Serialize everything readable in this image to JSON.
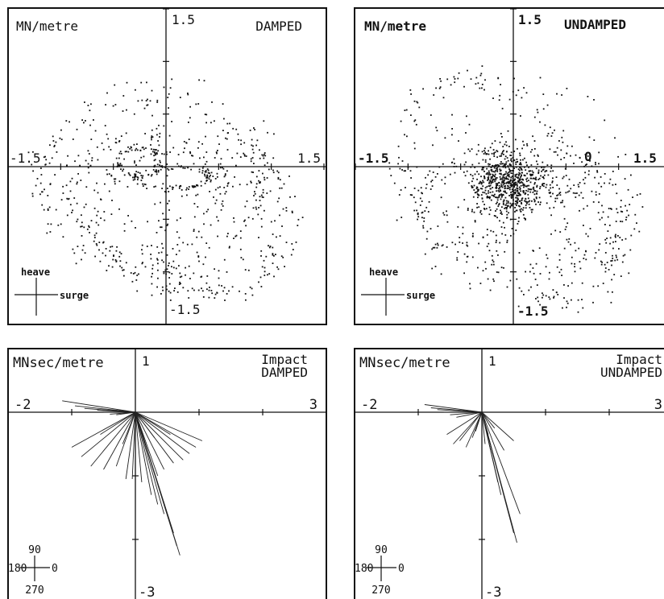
{
  "chart_data": [
    {
      "type": "scatter",
      "title": "DAMPED",
      "unit_label": "MN/metre",
      "axes_labels": {
        "ymax": "1.5",
        "xmin": "-1.5",
        "xmax": "1.5",
        "ymin": "-1.5"
      },
      "legend_cross": {
        "vertical": "heave",
        "horizontal": "surge"
      },
      "xlim": [
        -1.5,
        1.5
      ],
      "ylim": [
        -1.5,
        1.5
      ],
      "grid": false,
      "rings": [
        {
          "cx": -0.15,
          "cy": -0.15,
          "rx": 1.05,
          "ry": 0.8,
          "n": 150,
          "jitter": 0.05
        },
        {
          "cx": -0.2,
          "cy": -0.25,
          "rx": 0.7,
          "ry": 0.55,
          "n": 110,
          "jitter": 0.05
        },
        {
          "cx": 0.5,
          "cy": -0.6,
          "rx": 0.55,
          "ry": 0.55,
          "n": 110,
          "jitter": 0.07
        },
        {
          "cx": 0.3,
          "cy": -0.5,
          "rx": 0.95,
          "ry": 0.7,
          "n": 140,
          "jitter": 0.05
        },
        {
          "cx": -0.25,
          "cy": 0.05,
          "rx": 0.2,
          "ry": 0.14,
          "n": 80,
          "jitter": 0.02
        },
        {
          "cx": 0.05,
          "cy": -0.1,
          "rx": 0.35,
          "ry": 0.1,
          "n": 80,
          "jitter": 0.02
        }
      ],
      "scatter_density": 1100
    },
    {
      "type": "scatter",
      "title": "UNDAMPED",
      "unit_label": "MN/metre",
      "axes_labels": {
        "ymax": "1.5",
        "xmin": "-1.5",
        "xmax": "1.5",
        "ymin": "-1.5",
        "extra": "0"
      },
      "legend_cross": {
        "vertical": "heave",
        "horizontal": "surge"
      },
      "xlim": [
        -1.5,
        1.5
      ],
      "ylim": [
        -1.5,
        1.5
      ],
      "grid": false,
      "rings": [
        {
          "cx": -0.35,
          "cy": 0.1,
          "rx": 0.75,
          "ry": 0.75,
          "n": 130,
          "jitter": 0.06
        },
        {
          "cx": 0.05,
          "cy": -0.4,
          "rx": 0.95,
          "ry": 0.6,
          "n": 140,
          "jitter": 0.05
        },
        {
          "cx": 0.4,
          "cy": -0.75,
          "rx": 0.6,
          "ry": 0.55,
          "n": 110,
          "jitter": 0.07
        },
        {
          "cx": 0.8,
          "cy": -0.5,
          "rx": 0.35,
          "ry": 0.4,
          "n": 60,
          "jitter": 0.05
        }
      ],
      "cluster": {
        "cx": -0.05,
        "cy": -0.1,
        "sx": 0.18,
        "sy": 0.15,
        "n": 700
      },
      "scatter_density": 1000
    },
    {
      "type": "line",
      "title": "Impact DAMPED",
      "unit_label": "MNsec/metre",
      "axes_labels": {
        "ymax": "1",
        "xmin": "-2",
        "xmax": "3",
        "ymin": "-3"
      },
      "legend_cross": {
        "top": "90",
        "left": "180",
        "right": "0",
        "bottom": "270"
      },
      "xlim": [
        -2,
        3
      ],
      "ylim": [
        -3,
        1
      ],
      "origin_rays": [
        [
          -1.15,
          0.18
        ],
        [
          -0.95,
          0.1
        ],
        [
          -0.8,
          0.06
        ],
        [
          -0.6,
          0.03
        ],
        [
          -0.5,
          0.0
        ],
        [
          -0.4,
          -0.03
        ],
        [
          -0.3,
          -0.04
        ],
        [
          -1.0,
          -0.55
        ],
        [
          -0.85,
          -0.7
        ],
        [
          -0.7,
          -0.85
        ],
        [
          -0.5,
          -0.9
        ],
        [
          -0.3,
          -0.85
        ],
        [
          -0.15,
          -1.05
        ],
        [
          -0.05,
          -1.05
        ],
        [
          0.1,
          -1.1
        ],
        [
          0.25,
          -1.3
        ],
        [
          0.35,
          -1.45
        ],
        [
          0.45,
          -1.6
        ],
        [
          0.55,
          -1.75
        ],
        [
          0.6,
          -1.9
        ],
        [
          0.65,
          -2.1
        ],
        [
          0.7,
          -2.25
        ],
        [
          1.05,
          -0.45
        ],
        [
          0.95,
          -0.55
        ],
        [
          0.85,
          -0.65
        ],
        [
          0.75,
          -0.75
        ],
        [
          0.6,
          -0.8
        ],
        [
          0.45,
          -0.9
        ],
        [
          0.35,
          -1.0
        ],
        [
          -0.55,
          -0.35
        ],
        [
          -0.2,
          -0.5
        ],
        [
          0.3,
          -0.4
        ],
        [
          0.55,
          -0.35
        ]
      ]
    },
    {
      "type": "line",
      "title": "Impact UNDAMPED",
      "unit_label": "MNsec/metre",
      "axes_labels": {
        "ymax": "1",
        "xmin": "-2",
        "xmax": "3",
        "ymin": "-3"
      },
      "legend_cross": {
        "top": "90",
        "left": "180",
        "right": "0",
        "bottom": "270"
      },
      "xlim": [
        -2,
        3
      ],
      "ylim": [
        -3,
        1
      ],
      "origin_rays": [
        [
          -0.9,
          0.12
        ],
        [
          -0.8,
          0.07
        ],
        [
          -0.7,
          0.04
        ],
        [
          -0.6,
          0.0
        ],
        [
          -0.5,
          -0.04
        ],
        [
          -0.4,
          -0.08
        ],
        [
          -0.55,
          -0.35
        ],
        [
          -0.45,
          -0.5
        ],
        [
          -0.35,
          -0.45
        ],
        [
          -0.25,
          -0.55
        ],
        [
          -0.15,
          -0.4
        ],
        [
          0.1,
          -0.35
        ],
        [
          0.2,
          -0.25
        ],
        [
          0.25,
          -1.1
        ],
        [
          0.3,
          -1.3
        ],
        [
          0.4,
          -1.5
        ],
        [
          0.45,
          -1.7
        ],
        [
          0.5,
          -1.9
        ],
        [
          0.55,
          -2.05
        ],
        [
          0.6,
          -1.6
        ],
        [
          0.35,
          -0.6
        ],
        [
          0.5,
          -0.45
        ],
        [
          0.05,
          -0.5
        ],
        [
          -0.1,
          -0.3
        ]
      ]
    }
  ]
}
